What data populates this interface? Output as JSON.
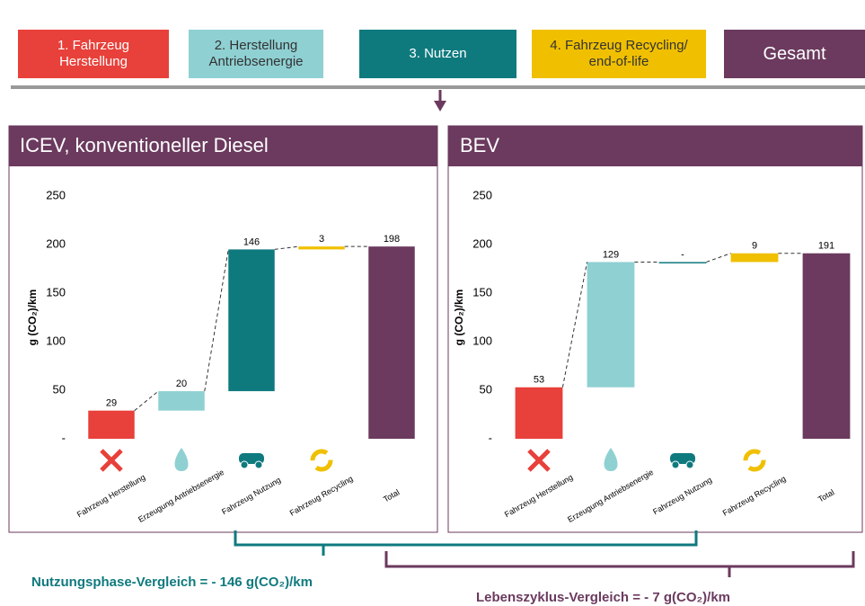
{
  "steps": [
    "1. Fahrzeug Herstellung",
    "2. Herstellung Antriebsenergie",
    "3. Nutzen",
    "4. Fahrzeug Recycling/ end-of-life",
    "Gesamt"
  ],
  "chart_data": [
    {
      "type": "waterfall",
      "title": "ICEV, konventioneller Diesel",
      "ylabel": "g (CO₂)/km",
      "categories": [
        "Fahrzeug Herstellung",
        "Erzeugung Antriebsenergie",
        "Fahrzeug Nutzung",
        "Fahrzeug Recycling",
        "Total"
      ],
      "values": [
        29,
        20,
        146,
        3,
        198
      ],
      "colors": [
        "#e8403a",
        "#8fd0d3",
        "#0f7a7e",
        "#f0c000",
        "#6b3a5e"
      ],
      "ylim": [
        0,
        250
      ],
      "yticks": [
        {
          "value": 0,
          "label": "-"
        },
        50,
        100,
        150,
        200,
        250
      ]
    },
    {
      "type": "waterfall",
      "title": "BEV",
      "ylabel": "g (CO₂)/km",
      "categories": [
        "Fahrzeug Herstellung",
        "Erzeugung Antriebsenergie",
        "Fahrzeug Nutzung",
        "Fahrzeug Recycling",
        "Total"
      ],
      "values": [
        53,
        129,
        0,
        9,
        191
      ],
      "value_labels": [
        "53",
        "129",
        "-",
        "9",
        "191"
      ],
      "colors": [
        "#e8403a",
        "#8fd0d3",
        "#0f7a7e",
        "#f0c000",
        "#6b3a5e"
      ],
      "ylim": [
        0,
        250
      ],
      "yticks": [
        {
          "value": 0,
          "label": "-"
        },
        50,
        100,
        150,
        200,
        250
      ]
    }
  ],
  "comparisons": [
    "Nutzungsphase-Vergleich = - 146 g(CO₂)/km",
    "Lebenszyklus-Vergleich = - 7 g(CO₂)/km"
  ]
}
